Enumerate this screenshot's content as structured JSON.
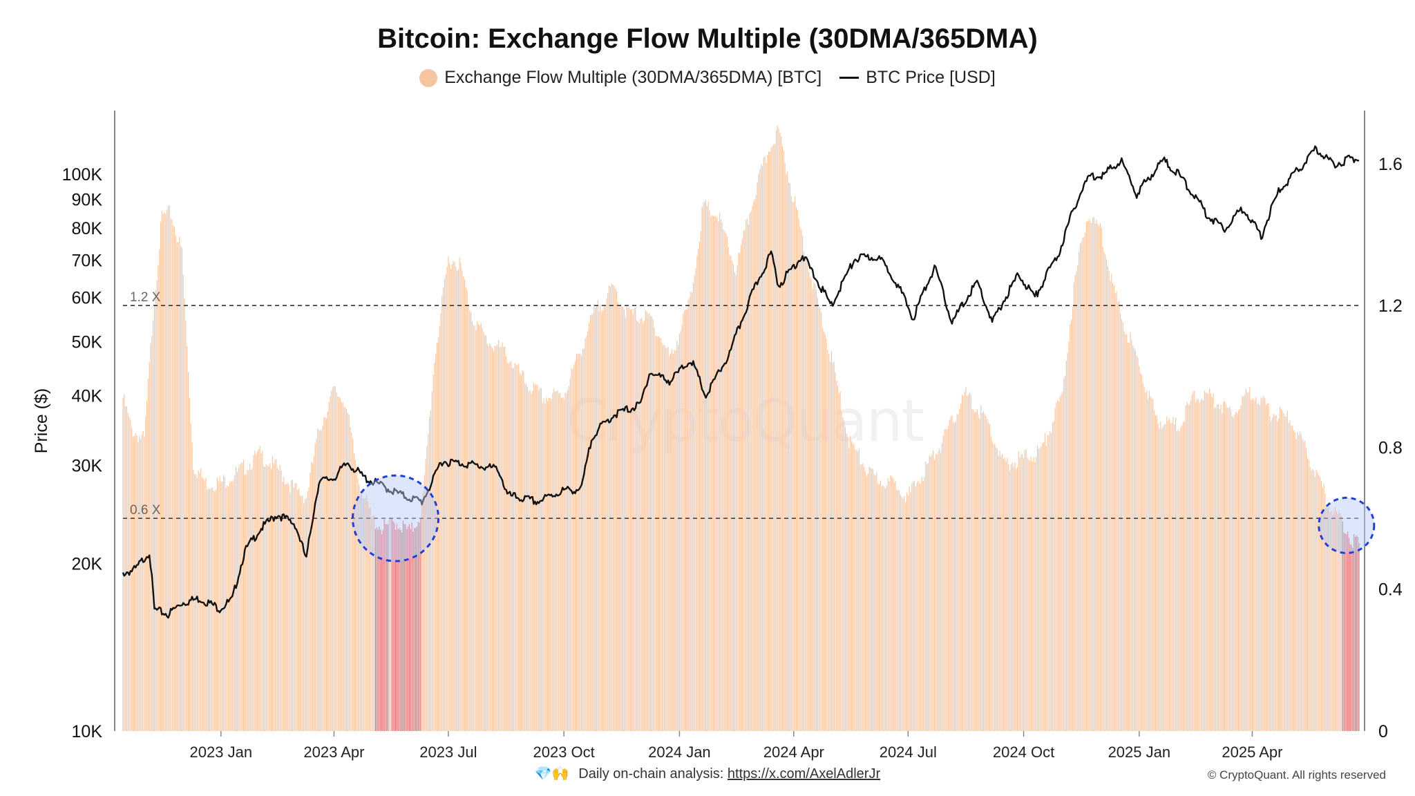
{
  "chart_data": {
    "type": "bar",
    "title": "Bitcoin: Exchange Flow Multiple (30DMA/365DMA)",
    "legend_position": "top-center",
    "legend": [
      {
        "label": "Exchange Flow Multiple (30DMA/365DMA) [BTC]",
        "color": "#f5c4a0",
        "marker": "dot"
      },
      {
        "label": "BTC Price [USD]",
        "color": "#111111",
        "marker": "line"
      }
    ],
    "ylabel_left": "Price ($)",
    "y_left_scale": "log",
    "y_left_range": [
      10000,
      130000
    ],
    "y_left_ticks": [
      "10K",
      "20K",
      "30K",
      "40K",
      "50K",
      "60K",
      "70K",
      "80K",
      "90K",
      "100K"
    ],
    "y_right_range": [
      0,
      1.75
    ],
    "y_right_ticks": [
      "0",
      "0.4",
      "0.8",
      "1.2",
      "1.6"
    ],
    "x_range": [
      "2022-10-15",
      "2025-06-25"
    ],
    "x_ticks": [
      "2023 Jan",
      "2023 Apr",
      "2023 Jul",
      "2023 Oct",
      "2024 Jan",
      "2024 Apr",
      "2024 Jul",
      "2024 Oct",
      "2025 Jan",
      "2025 Apr"
    ],
    "reference_lines": [
      {
        "label": "1.2 X",
        "value": 1.2
      },
      {
        "label": "0.6 X",
        "value": 0.6
      }
    ],
    "bar_color": "#f5c4a0",
    "bar_highlight_color": "#e26a6a",
    "highlight_rule": "value below 0.6",
    "grid": false,
    "series": [
      {
        "name": "Exchange Flow Multiple (30DMA/365DMA) [BTC]",
        "axis": "right",
        "points": [
          [
            "2022-10-15",
            0.94
          ],
          [
            "2022-10-22",
            0.85
          ],
          [
            "2022-11-01",
            0.82
          ],
          [
            "2022-11-08",
            1.18
          ],
          [
            "2022-11-15",
            1.45
          ],
          [
            "2022-11-22",
            1.46
          ],
          [
            "2022-12-01",
            1.35
          ],
          [
            "2022-12-10",
            0.75
          ],
          [
            "2022-12-20",
            0.7
          ],
          [
            "2023-01-01",
            0.7
          ],
          [
            "2023-01-15",
            0.73
          ],
          [
            "2023-02-01",
            0.78
          ],
          [
            "2023-02-15",
            0.74
          ],
          [
            "2023-03-01",
            0.68
          ],
          [
            "2023-03-10",
            0.66
          ],
          [
            "2023-03-20",
            0.85
          ],
          [
            "2023-04-01",
            0.96
          ],
          [
            "2023-04-10",
            0.93
          ],
          [
            "2023-04-20",
            0.72
          ],
          [
            "2023-05-01",
            0.6
          ],
          [
            "2023-05-10",
            0.57
          ],
          [
            "2023-05-20",
            0.59
          ],
          [
            "2023-06-01",
            0.56
          ],
          [
            "2023-06-10",
            0.62
          ],
          [
            "2023-06-20",
            1.05
          ],
          [
            "2023-07-01",
            1.33
          ],
          [
            "2023-07-10",
            1.32
          ],
          [
            "2023-07-20",
            1.17
          ],
          [
            "2023-08-01",
            1.1
          ],
          [
            "2023-08-15",
            1.07
          ],
          [
            "2023-09-01",
            0.98
          ],
          [
            "2023-09-15",
            0.94
          ],
          [
            "2023-10-01",
            0.95
          ],
          [
            "2023-10-15",
            1.08
          ],
          [
            "2023-10-25",
            1.18
          ],
          [
            "2023-11-10",
            1.25
          ],
          [
            "2023-11-20",
            1.18
          ],
          [
            "2023-12-10",
            1.16
          ],
          [
            "2023-12-25",
            1.05
          ],
          [
            "2024-01-10",
            1.22
          ],
          [
            "2024-01-20",
            1.48
          ],
          [
            "2024-02-01",
            1.45
          ],
          [
            "2024-02-15",
            1.3
          ],
          [
            "2024-03-01",
            1.52
          ],
          [
            "2024-03-15",
            1.67
          ],
          [
            "2024-03-20",
            1.69
          ],
          [
            "2024-04-01",
            1.5
          ],
          [
            "2024-04-15",
            1.28
          ],
          [
            "2024-05-01",
            1.05
          ],
          [
            "2024-05-15",
            0.82
          ],
          [
            "2024-06-01",
            0.72
          ],
          [
            "2024-06-15",
            0.7
          ],
          [
            "2024-06-25",
            0.69
          ],
          [
            "2024-07-01",
            0.66
          ],
          [
            "2024-07-15",
            0.74
          ],
          [
            "2024-08-01",
            0.84
          ],
          [
            "2024-08-15",
            0.95
          ],
          [
            "2024-09-01",
            0.88
          ],
          [
            "2024-09-15",
            0.75
          ],
          [
            "2024-10-01",
            0.77
          ],
          [
            "2024-10-15",
            0.79
          ],
          [
            "2024-11-01",
            0.95
          ],
          [
            "2024-11-10",
            1.25
          ],
          [
            "2024-11-20",
            1.45
          ],
          [
            "2024-12-01",
            1.42
          ],
          [
            "2024-12-15",
            1.2
          ],
          [
            "2025-01-01",
            1.03
          ],
          [
            "2025-01-15",
            0.88
          ],
          [
            "2025-02-01",
            0.86
          ],
          [
            "2025-02-15",
            0.95
          ],
          [
            "2025-03-01",
            0.94
          ],
          [
            "2025-03-15",
            0.9
          ],
          [
            "2025-04-01",
            0.96
          ],
          [
            "2025-04-15",
            0.9
          ],
          [
            "2025-05-01",
            0.88
          ],
          [
            "2025-05-15",
            0.78
          ],
          [
            "2025-06-01",
            0.64
          ],
          [
            "2025-06-10",
            0.6
          ],
          [
            "2025-06-18",
            0.55
          ],
          [
            "2025-06-25",
            0.52
          ]
        ]
      },
      {
        "name": "BTC Price [USD]",
        "axis": "left",
        "points": [
          [
            "2022-10-15",
            19200
          ],
          [
            "2022-10-25",
            19500
          ],
          [
            "2022-11-05",
            21000
          ],
          [
            "2022-11-09",
            16500
          ],
          [
            "2022-11-20",
            16200
          ],
          [
            "2022-12-01",
            17000
          ],
          [
            "2022-12-15",
            17300
          ],
          [
            "2022-12-31",
            16600
          ],
          [
            "2023-01-10",
            17200
          ],
          [
            "2023-01-20",
            21000
          ],
          [
            "2023-02-01",
            23000
          ],
          [
            "2023-02-15",
            24500
          ],
          [
            "2023-03-01",
            23500
          ],
          [
            "2023-03-10",
            20300
          ],
          [
            "2023-03-20",
            28000
          ],
          [
            "2023-04-01",
            28500
          ],
          [
            "2023-04-12",
            30300
          ],
          [
            "2023-04-25",
            28500
          ],
          [
            "2023-05-10",
            27500
          ],
          [
            "2023-05-25",
            26500
          ],
          [
            "2023-06-10",
            25800
          ],
          [
            "2023-06-20",
            28500
          ],
          [
            "2023-06-25",
            30500
          ],
          [
            "2023-07-15",
            30200
          ],
          [
            "2023-08-10",
            29500
          ],
          [
            "2023-08-17",
            26500
          ],
          [
            "2023-09-10",
            25800
          ],
          [
            "2023-09-30",
            27000
          ],
          [
            "2023-10-15",
            27200
          ],
          [
            "2023-10-24",
            34000
          ],
          [
            "2023-11-10",
            37000
          ],
          [
            "2023-12-01",
            38500
          ],
          [
            "2023-12-08",
            44000
          ],
          [
            "2023-12-25",
            42500
          ],
          [
            "2024-01-10",
            46500
          ],
          [
            "2024-01-22",
            39800
          ],
          [
            "2024-02-10",
            47500
          ],
          [
            "2024-02-28",
            61000
          ],
          [
            "2024-03-14",
            72000
          ],
          [
            "2024-03-20",
            63000
          ],
          [
            "2024-04-08",
            71500
          ],
          [
            "2024-04-20",
            64000
          ],
          [
            "2024-05-01",
            58000
          ],
          [
            "2024-05-20",
            70500
          ],
          [
            "2024-06-07",
            71000
          ],
          [
            "2024-06-20",
            65000
          ],
          [
            "2024-07-05",
            55000
          ],
          [
            "2024-07-22",
            68000
          ],
          [
            "2024-08-05",
            54000
          ],
          [
            "2024-08-25",
            64000
          ],
          [
            "2024-09-06",
            54000
          ],
          [
            "2024-09-27",
            66000
          ],
          [
            "2024-10-10",
            60000
          ],
          [
            "2024-10-29",
            72000
          ],
          [
            "2024-11-12",
            89000
          ],
          [
            "2024-11-22",
            99000
          ],
          [
            "2024-12-05",
            100000
          ],
          [
            "2024-12-17",
            106000
          ],
          [
            "2024-12-30",
            92000
          ],
          [
            "2025-01-20",
            106000
          ],
          [
            "2025-02-01",
            100000
          ],
          [
            "2025-02-25",
            84000
          ],
          [
            "2025-03-10",
            80000
          ],
          [
            "2025-03-25",
            87000
          ],
          [
            "2025-04-08",
            77000
          ],
          [
            "2025-04-22",
            93000
          ],
          [
            "2025-05-10",
            103000
          ],
          [
            "2025-05-22",
            111000
          ],
          [
            "2025-06-05",
            104000
          ],
          [
            "2025-06-15",
            106000
          ],
          [
            "2025-06-25",
            107000
          ]
        ]
      }
    ],
    "annotations": [
      {
        "type": "dashed-circle",
        "date": "2023-05-20",
        "value": 0.6
      },
      {
        "type": "dashed-circle",
        "date": "2025-06-15",
        "value": 0.58
      }
    ]
  },
  "watermark": "CryptoQuant",
  "footer": {
    "icons": "💎🙌",
    "text": "Daily on-chain analysis: ",
    "link": "https://x.com/AxelAdlerJr"
  },
  "copyright": "© CryptoQuant. All rights reserved"
}
